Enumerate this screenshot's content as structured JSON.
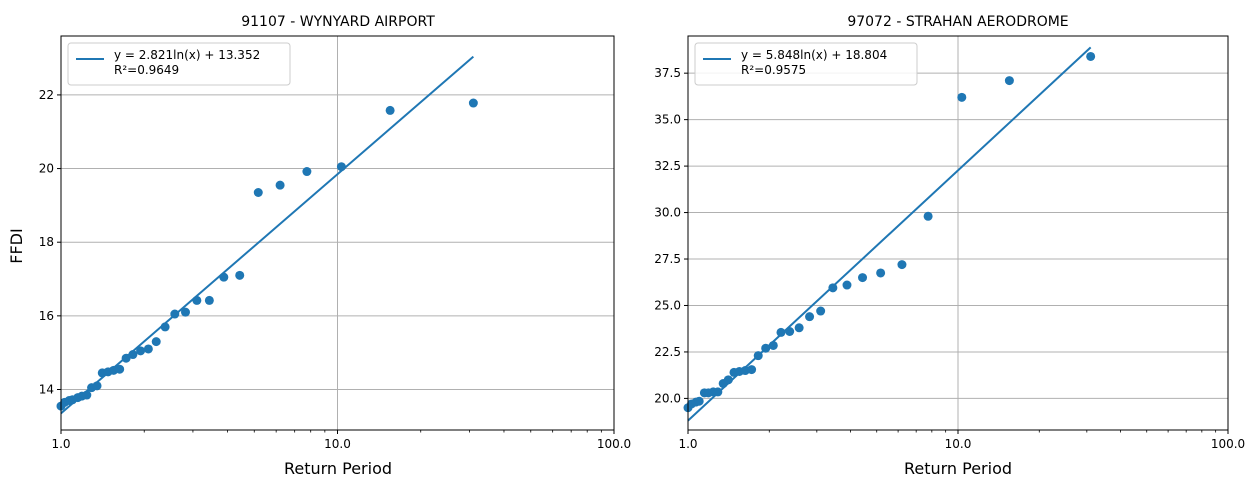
{
  "colors": {
    "series": "#1f77b4",
    "grid": "#b0b0b0",
    "axis": "#000000",
    "legend_border": "#cccccc"
  },
  "chart_data": [
    {
      "type": "scatter",
      "title": "91107 - WYNYARD AIRPORT",
      "xlabel": "Return Period",
      "ylabel": "FFDI",
      "xscale": "log",
      "xlim": [
        1.0,
        100.0
      ],
      "ylim": [
        12.9,
        23.6
      ],
      "xticks": [
        1,
        10,
        100
      ],
      "xtick_labels": [
        "1.0",
        "10.0",
        "100.0"
      ],
      "yticks": [
        14,
        16,
        18,
        20,
        22
      ],
      "ytick_labels": [
        "14",
        "16",
        "18",
        "20",
        "22"
      ],
      "grid": true,
      "legend_position": "upper-left",
      "legend": [
        "y = 2.821ln(x) + 13.352",
        "R²=0.9649"
      ],
      "fit": {
        "type": "logarithmic",
        "a": 2.821,
        "b": 13.352,
        "x_range": [
          1.0,
          31.0
        ]
      },
      "x": [
        1.0,
        1.03,
        1.07,
        1.1,
        1.15,
        1.19,
        1.24,
        1.29,
        1.35,
        1.41,
        1.48,
        1.55,
        1.63,
        1.72,
        1.82,
        1.94,
        2.07,
        2.21,
        2.38,
        2.58,
        2.82,
        3.1,
        3.44,
        3.88,
        4.43,
        5.17,
        6.2,
        7.75,
        10.33,
        15.5,
        31.0
      ],
      "y": [
        13.55,
        13.65,
        13.7,
        13.72,
        13.78,
        13.82,
        13.85,
        14.05,
        14.1,
        14.45,
        14.48,
        14.52,
        14.55,
        14.85,
        14.95,
        15.05,
        15.1,
        15.3,
        15.7,
        16.05,
        16.1,
        16.42,
        16.42,
        17.05,
        17.1,
        19.35,
        19.55,
        19.92,
        20.05,
        21.58,
        21.78
      ]
    },
    {
      "type": "scatter",
      "title": "97072 - STRAHAN AERODROME",
      "xlabel": "Return Period",
      "ylabel": "",
      "xscale": "log",
      "xlim": [
        1.0,
        100.0
      ],
      "ylim": [
        18.3,
        39.5
      ],
      "xticks": [
        1,
        10,
        100
      ],
      "xtick_labels": [
        "1.0",
        "10.0",
        "100.0"
      ],
      "yticks": [
        20.0,
        22.5,
        25.0,
        27.5,
        30.0,
        32.5,
        35.0,
        37.5
      ],
      "ytick_labels": [
        "20.0",
        "22.5",
        "25.0",
        "27.5",
        "30.0",
        "32.5",
        "35.0",
        "37.5"
      ],
      "grid": true,
      "legend_position": "upper-left",
      "legend": [
        "y = 5.848ln(x) + 18.804",
        "R²=0.9575"
      ],
      "fit": {
        "type": "logarithmic",
        "a": 5.848,
        "b": 18.804,
        "x_range": [
          1.0,
          31.0
        ]
      },
      "x": [
        1.0,
        1.03,
        1.07,
        1.1,
        1.15,
        1.19,
        1.24,
        1.29,
        1.35,
        1.41,
        1.48,
        1.55,
        1.63,
        1.72,
        1.82,
        1.94,
        2.07,
        2.21,
        2.38,
        2.58,
        2.82,
        3.1,
        3.44,
        3.88,
        4.43,
        5.17,
        6.2,
        7.75,
        10.33,
        15.5,
        31.0
      ],
      "y": [
        19.5,
        19.7,
        19.8,
        19.85,
        20.3,
        20.3,
        20.35,
        20.35,
        20.8,
        21.0,
        21.4,
        21.45,
        21.5,
        21.55,
        22.3,
        22.7,
        22.85,
        23.55,
        23.6,
        23.8,
        24.4,
        24.7,
        25.95,
        26.1,
        26.5,
        26.75,
        27.2,
        29.8,
        36.2,
        37.1,
        38.4
      ]
    }
  ]
}
